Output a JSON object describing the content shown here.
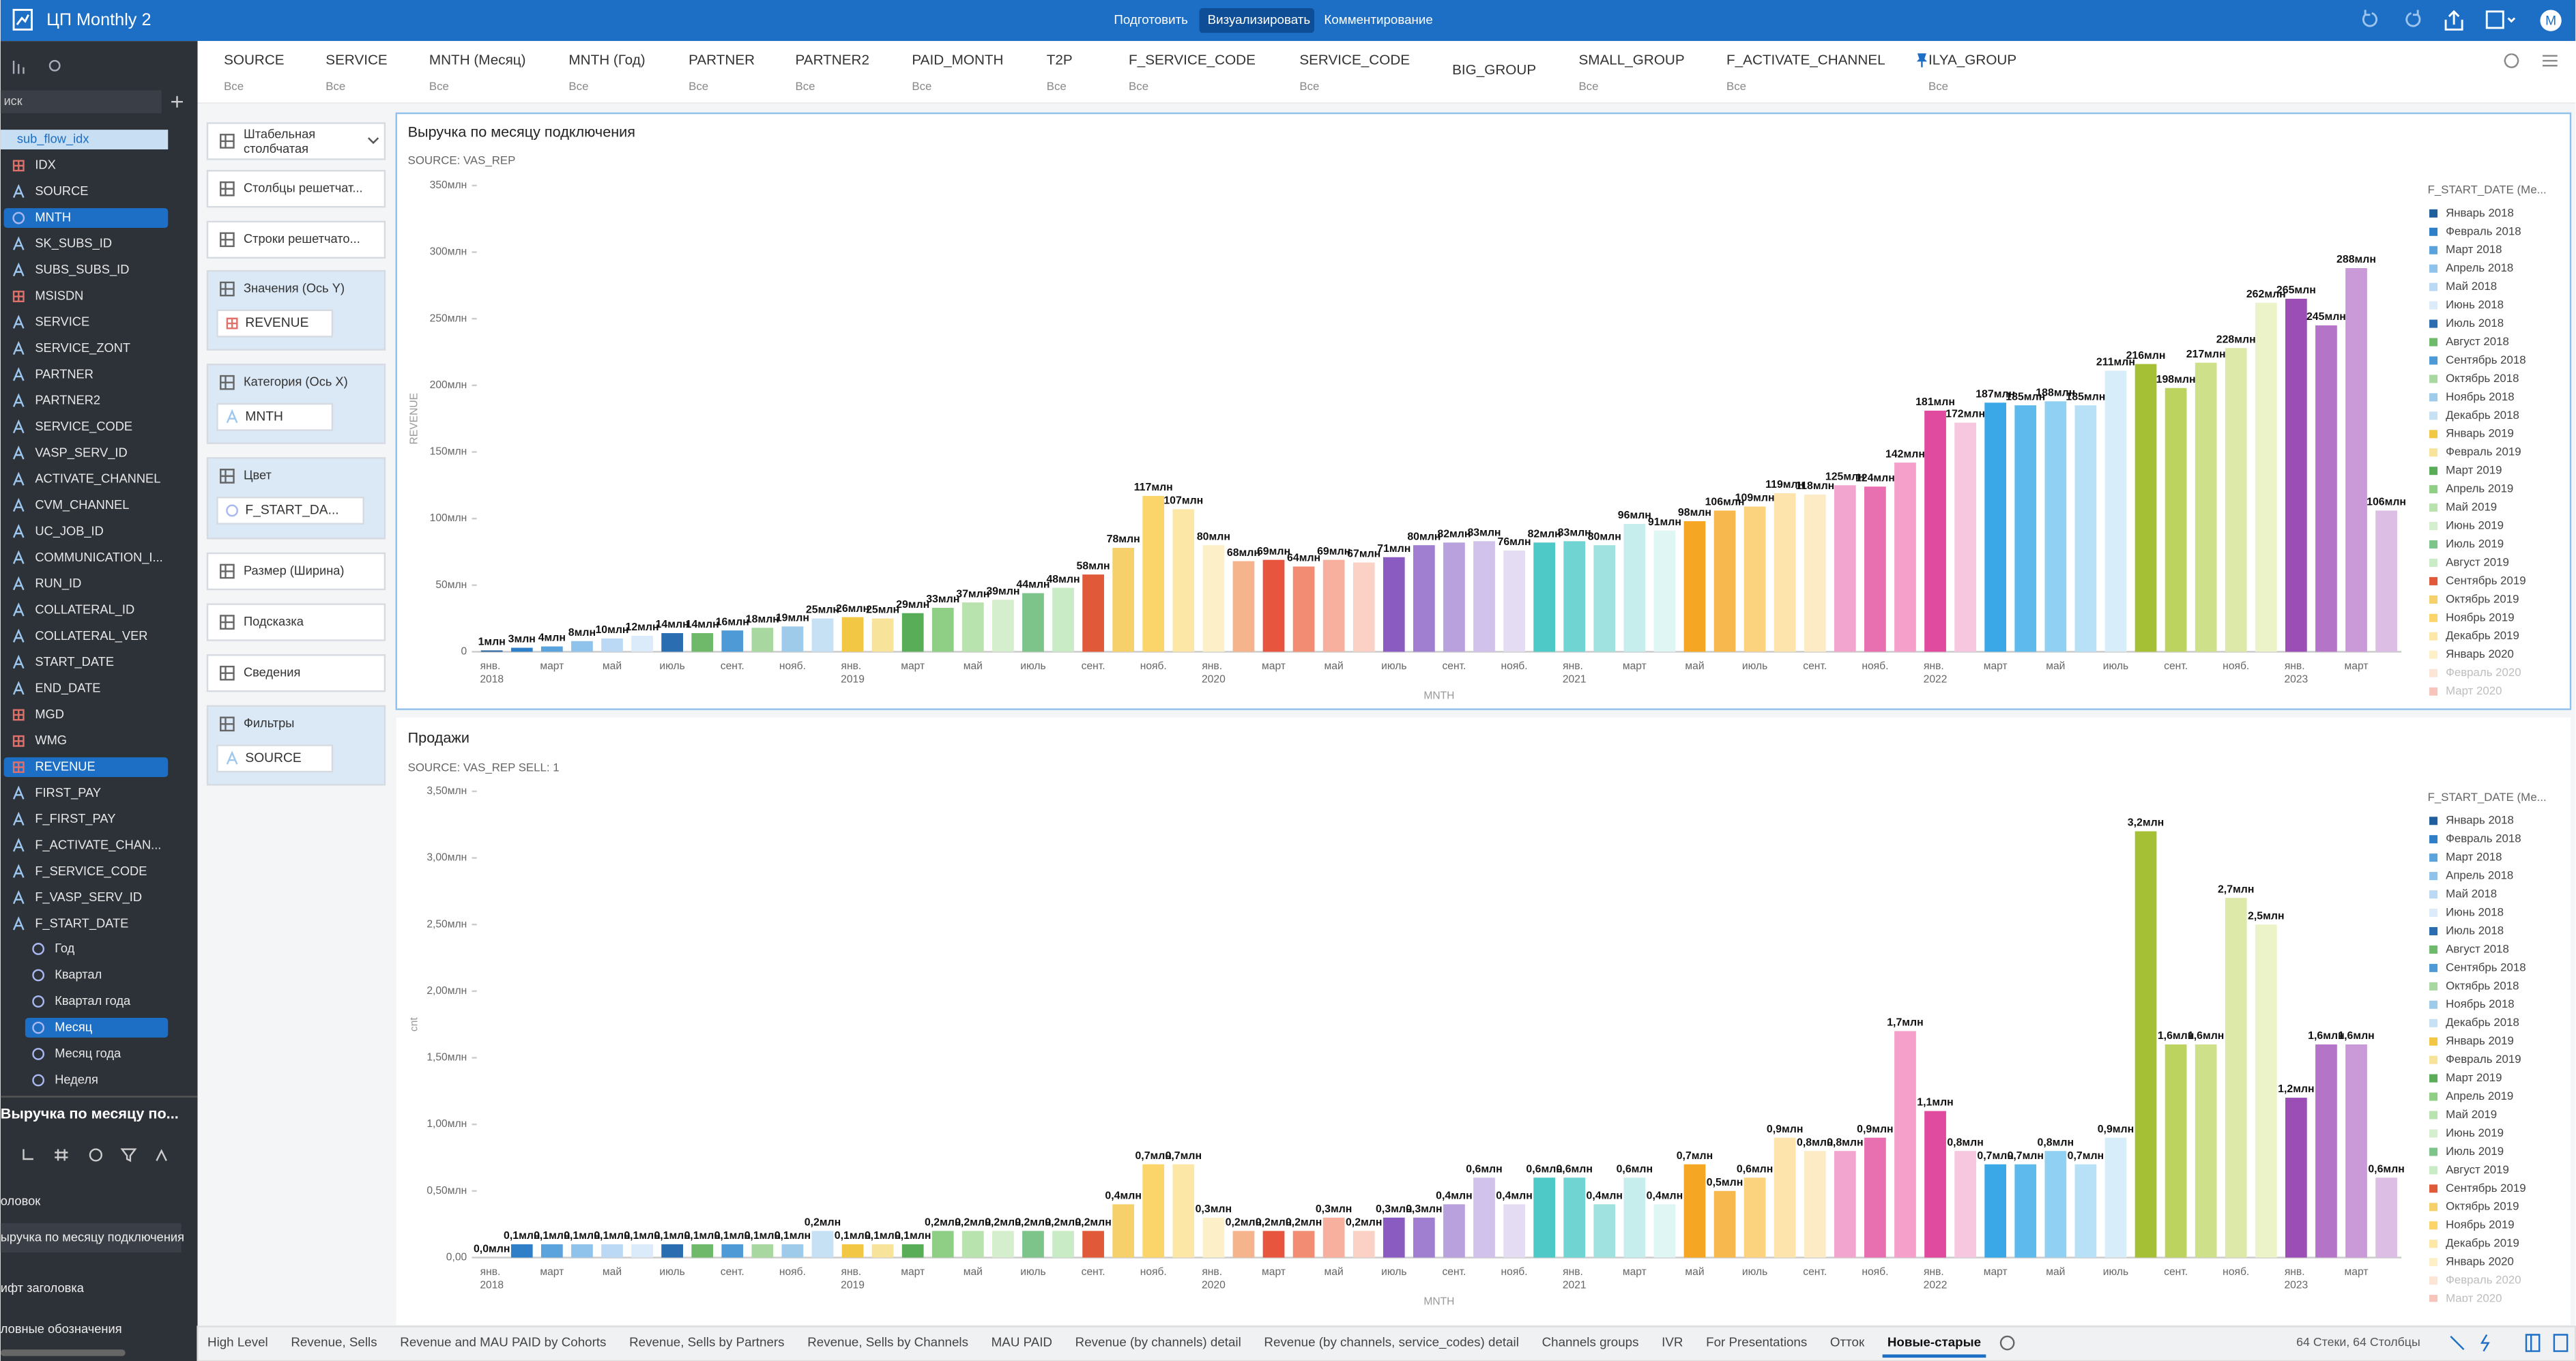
{
  "header": {
    "title": "ЦП Monthly 2",
    "modes": [
      "Подготовить",
      "Визуализировать",
      "Комментирование"
    ],
    "active_mode": 1,
    "avatar": "M"
  },
  "sidebar": {
    "search": "иск",
    "fields": [
      {
        "label": "sub_flow_idx",
        "kind": "source",
        "selected": "light"
      },
      {
        "label": "IDX",
        "kind": "num"
      },
      {
        "label": "SOURCE",
        "kind": "str"
      },
      {
        "label": "MNTH",
        "kind": "date",
        "selected": "blue"
      },
      {
        "label": "SK_SUBS_ID",
        "kind": "str"
      },
      {
        "label": "SUBS_SUBS_ID",
        "kind": "str"
      },
      {
        "label": "MSISDN",
        "kind": "num"
      },
      {
        "label": "SERVICE",
        "kind": "str"
      },
      {
        "label": "SERVICE_ZONT",
        "kind": "str"
      },
      {
        "label": "PARTNER",
        "kind": "str"
      },
      {
        "label": "PARTNER2",
        "kind": "str"
      },
      {
        "label": "SERVICE_CODE",
        "kind": "str"
      },
      {
        "label": "VASP_SERV_ID",
        "kind": "str"
      },
      {
        "label": "ACTIVATE_CHANNEL",
        "kind": "str"
      },
      {
        "label": "CVM_CHANNEL",
        "kind": "str"
      },
      {
        "label": "UC_JOB_ID",
        "kind": "str"
      },
      {
        "label": "COMMUNICATION_I...",
        "kind": "str"
      },
      {
        "label": "RUN_ID",
        "kind": "str"
      },
      {
        "label": "COLLATERAL_ID",
        "kind": "str"
      },
      {
        "label": "COLLATERAL_VER",
        "kind": "str"
      },
      {
        "label": "START_DATE",
        "kind": "str"
      },
      {
        "label": "END_DATE",
        "kind": "str"
      },
      {
        "label": "MGD",
        "kind": "num"
      },
      {
        "label": "WMG",
        "kind": "num"
      },
      {
        "label": "REVENUE",
        "kind": "num",
        "selected": "blue"
      },
      {
        "label": "FIRST_PAY",
        "kind": "str"
      },
      {
        "label": "F_FIRST_PAY",
        "kind": "str"
      },
      {
        "label": "F_ACTIVATE_CHAN...",
        "kind": "str"
      },
      {
        "label": "F_SERVICE_CODE",
        "kind": "str"
      },
      {
        "label": "F_VASP_SERV_ID",
        "kind": "str"
      },
      {
        "label": "F_START_DATE",
        "kind": "str"
      }
    ],
    "date_parts": [
      {
        "label": "Год"
      },
      {
        "label": "Квартал"
      },
      {
        "label": "Квартал года"
      },
      {
        "label": "Месяц",
        "selected": "blue"
      },
      {
        "label": "Месяц года"
      },
      {
        "label": "Неделя"
      }
    ],
    "panel_title": "Выручка по месяцу по...",
    "settings": [
      "оловок",
      "ыручка по месяцу подключения",
      "ифт заголовка",
      "ловные обозначения"
    ]
  },
  "filters": [
    {
      "name": "SOURCE",
      "value": "Все"
    },
    {
      "name": "SERVICE",
      "value": "Все"
    },
    {
      "name": "MNTH (Месяц)",
      "value": "Все"
    },
    {
      "name": "MNTH (Год)",
      "value": "Все"
    },
    {
      "name": "PARTNER",
      "value": "Все"
    },
    {
      "name": "PARTNER2",
      "value": "Все"
    },
    {
      "name": "PAID_MONTH",
      "value": "Все"
    },
    {
      "name": "T2P",
      "value": "Все"
    },
    {
      "name": "F_SERVICE_CODE",
      "value": "Все"
    },
    {
      "name": "SERVICE_CODE",
      "value": "Все"
    },
    {
      "name": "BIG_GROUP"
    },
    {
      "name": "SMALL_GROUP",
      "value": "Все"
    },
    {
      "name": "F_ACTIVATE_CHANNEL",
      "value": "Все"
    },
    {
      "name": "ILYA_GROUP",
      "value": "Все"
    }
  ],
  "shelves": [
    {
      "label": "Штабельная столбчатая"
    },
    {
      "label": "Столбцы решетчат..."
    },
    {
      "label": "Строки решетчато..."
    },
    {
      "label": "Значения (Ось Y)",
      "pill": "REVENUE"
    },
    {
      "label": "Категория (Ось X)",
      "pill": "MNTH"
    },
    {
      "label": "Цвет",
      "pill": "F_START_DA..."
    },
    {
      "label": "Размер (Ширина)"
    },
    {
      "label": "Подсказка"
    },
    {
      "label": "Сведения"
    },
    {
      "label": "Фильтры",
      "pill": "SOURCE"
    }
  ],
  "chart_data": [
    {
      "type": "bar",
      "title": "Выручка по месяцу подключения",
      "subtitle": "SOURCE: VAS_REP",
      "y_label": "REVENUE",
      "x_label": "MNTH",
      "categories": [
        "янв. 2018",
        null,
        "март",
        null,
        "май",
        null,
        "июль",
        null,
        "сент.",
        null,
        "нояб.",
        null,
        "янв. 2019",
        null,
        "март",
        null,
        "май",
        null,
        "июль",
        null,
        "сент.",
        null,
        "нояб.",
        null,
        "янв. 2020",
        null,
        "март",
        null,
        "май",
        null,
        "июль",
        null,
        "сент.",
        null,
        "нояб.",
        null,
        "янв. 2021",
        null,
        "март",
        null,
        "май",
        null,
        "июль",
        null,
        "сент.",
        null,
        "нояб.",
        null,
        "янв. 2022",
        null,
        "март",
        null,
        "май",
        null,
        "июль",
        null,
        "сент.",
        null,
        "нояб.",
        null,
        "янв. 2023",
        null,
        "март",
        null
      ],
      "values": [
        1,
        3,
        4,
        8,
        10,
        12,
        14,
        14,
        16,
        18,
        19,
        25,
        26,
        25,
        29,
        33,
        37,
        39,
        44,
        48,
        58,
        78,
        117,
        107,
        80,
        68,
        69,
        64,
        69,
        67,
        71,
        80,
        82,
        83,
        76,
        82,
        83,
        80,
        96,
        91,
        98,
        106,
        109,
        119,
        118,
        125,
        124,
        142,
        181,
        172,
        187,
        185,
        188,
        185,
        211,
        216,
        198,
        217,
        228,
        262,
        265,
        245,
        288,
        106
      ],
      "value_labels": [
        "1млн",
        "3млн",
        "4млн",
        "8млн",
        "10млн",
        "12млн",
        "14млн",
        "14млн",
        "16млн",
        "18млн",
        "19млн",
        "25млн",
        "26млн",
        "25млн",
        "29млн",
        "33млн",
        "37млн",
        "39млн",
        "44млн",
        "48млн",
        "58млн",
        "78млн",
        "117млн",
        "107млн",
        "80млн",
        "68млн",
        "69млн",
        "64млн",
        "69млн",
        "67млн",
        "71млн",
        "80млн",
        "82млн",
        "83млн",
        "76млн",
        "82млн",
        "83млн",
        "80млн",
        "96млн",
        "91млн",
        "98млн",
        "106млн",
        "109млн",
        "119млн",
        "118млн",
        "125млн",
        "124млн",
        "142млн",
        "181млн",
        "172млн",
        "187млн",
        "185млн",
        "188млн",
        "185млн",
        "211млн",
        "216млн",
        "198млн",
        "217млн",
        "228млн",
        "262млн",
        "265млн",
        "245млн",
        "288млн",
        "106млн"
      ],
      "colors": [
        "#1f5f9e",
        "#2f7fc8",
        "#5ba3dd",
        "#8fc3ec",
        "#bbd9f4",
        "#dcebf9",
        "#2a6db0",
        "#6fba6a",
        "#4e9ad6",
        "#a8d8a0",
        "#9fcbea",
        "#c6e0f4",
        "#f2c744",
        "#f7e39a",
        "#59ad59",
        "#8fcf85",
        "#b8e2ae",
        "#d5eecd",
        "#7cc48a",
        "#c9ebc6",
        "#e05a3a",
        "#f5d06b",
        "#fbd56a",
        "#fde7a6",
        "#fdf0c8",
        "#f6b48d",
        "#e8553f",
        "#f28d73",
        "#f7b09e",
        "#fbd0c5",
        "#8a5cc2",
        "#a07fd0",
        "#b8a1dd",
        "#d0c2ea",
        "#e4dcf3",
        "#4fc9c7",
        "#6fd4d2",
        "#9fe2e0",
        "#c6eeed",
        "#e0f6f5",
        "#f5a623",
        "#f7b94d",
        "#fbd27d",
        "#fde4ad",
        "#fdebc5",
        "#f2a6cf",
        "#e86fb0",
        "#f59fcb",
        "#e04b9f",
        "#f7c7e0",
        "#3aa8e6",
        "#5eb9ec",
        "#8fd0f3",
        "#b8e1f7",
        "#d7eefa",
        "#a6c035",
        "#bcd35f",
        "#cfe08a",
        "#dde9a8",
        "#ecf3c9",
        "#9b4fb6",
        "#b475c8",
        "#c99ad7",
        "#dcbde4"
      ],
      "ylim": [
        0,
        350
      ],
      "yticks": [
        0,
        {
          "value": 50,
          "label": "50млн"
        },
        {
          "value": 100,
          "label": "100млн"
        },
        {
          "value": 150,
          "label": "150млн"
        },
        {
          "value": 200,
          "label": "200млн"
        },
        {
          "value": 250,
          "label": "250млн"
        },
        {
          "value": 300,
          "label": "300млн"
        },
        {
          "value": 350,
          "label": "350млн"
        }
      ],
      "grid": false,
      "legend": {
        "title": "F_START_DATE (Ме...",
        "entries": [
          "Январь 2018",
          "Февраль 2018",
          "Март 2018",
          "Апрель 2018",
          "Май 2018",
          "Июнь 2018",
          "Июль 2018",
          "Август 2018",
          "Сентябрь 2018",
          "Октябрь 2018",
          "Ноябрь 2018",
          "Декабрь 2018",
          "Январь 2019",
          "Февраль 2019",
          "Март 2019",
          "Апрель 2019",
          "Май 2019",
          "Июнь 2019",
          "Июль 2019",
          "Август 2019",
          "Сентябрь 2019",
          "Октябрь 2019",
          "Ноябрь 2019",
          "Декабрь 2019",
          "Январь 2020",
          "Февраль 2020",
          "Март 2020"
        ]
      }
    },
    {
      "type": "bar",
      "title": "Продажи",
      "subtitle": "SOURCE: VAS_REP   SELL: 1",
      "y_label": "cnt",
      "x_label": "MNTH",
      "categories": [
        "янв. 2018",
        null,
        "март",
        null,
        "май",
        null,
        "июль",
        null,
        "сент.",
        null,
        "нояб.",
        null,
        "янв. 2019",
        null,
        "март",
        null,
        "май",
        null,
        "июль",
        null,
        "сент.",
        null,
        "нояб.",
        null,
        "янв. 2020",
        null,
        "март",
        null,
        "май",
        null,
        "июль",
        null,
        "сент.",
        null,
        "нояб.",
        null,
        "янв. 2021",
        null,
        "март",
        null,
        "май",
        null,
        "июль",
        null,
        "сент.",
        null,
        "нояб.",
        null,
        "янв. 2022",
        null,
        "март",
        null,
        "май",
        null,
        "июль",
        null,
        "сент.",
        null,
        "нояб.",
        null,
        "янв. 2023",
        null,
        "март",
        null
      ],
      "values": [
        0,
        0.1,
        0.1,
        0.1,
        0.1,
        0.1,
        0.1,
        0.1,
        0.1,
        0.1,
        0.1,
        0.2,
        0.1,
        0.1,
        0.1,
        0.2,
        0.2,
        0.2,
        0.2,
        0.2,
        0.2,
        0.4,
        0.7,
        0.7,
        0.3,
        0.2,
        0.2,
        0.2,
        0.3,
        0.2,
        0.3,
        0.3,
        0.4,
        0.6,
        0.4,
        0.6,
        0.6,
        0.4,
        0.6,
        0.4,
        0.7,
        0.5,
        0.6,
        0.9,
        0.8,
        0.8,
        0.9,
        1.7,
        1.1,
        0.8,
        0.7,
        0.7,
        0.8,
        0.7,
        0.9,
        3.2,
        1.6,
        1.6,
        2.7,
        2.5,
        1.2,
        1.6,
        1.6,
        0.6
      ],
      "value_labels": [
        "0,0млн",
        "0,1млн",
        "0,1млн",
        "0,1млн",
        "0,1млн",
        "0,1млн",
        "0,1млн",
        "0,1млн",
        "0,1млн",
        "0,1млн",
        "0,1млн",
        "0,2млн",
        "0,1млн",
        "0,1млн",
        "0,1млн",
        "0,2млн",
        "0,2млн",
        "0,2млн",
        "0,2млн",
        "0,2млн",
        "0,2млн",
        "0,4млн",
        "0,7млн",
        "0,7млн",
        "0,3млн",
        "0,2млн",
        "0,2млн",
        "0,2млн",
        "0,3млн",
        "0,2млн",
        "0,3млн",
        "0,3млн",
        "0,4млн",
        "0,6млн",
        "0,4млн",
        "0,6млн",
        "0,6млн",
        "0,4млн",
        "0,6млн",
        "0,4млн",
        "0,7млн",
        "0,5млн",
        "0,6млн",
        "0,9млн",
        "0,8млн",
        "0,8млн",
        "0,9млн",
        "1,7млн",
        "1,1млн",
        "0,8млн",
        "0,7млн",
        "0,7млн",
        "0,8млн",
        "0,7млн",
        "0,9млн",
        "3,2млн",
        "1,6млн",
        "1,6млн",
        "2,7млн",
        "2,5млн",
        "1,2млн",
        "1,6млн",
        "1,6млн",
        "0,6млн"
      ],
      "colors": [
        "#1f5f9e",
        "#2f7fc8",
        "#5ba3dd",
        "#8fc3ec",
        "#bbd9f4",
        "#dcebf9",
        "#2a6db0",
        "#6fba6a",
        "#4e9ad6",
        "#a8d8a0",
        "#9fcbea",
        "#c6e0f4",
        "#f2c744",
        "#f7e39a",
        "#59ad59",
        "#8fcf85",
        "#b8e2ae",
        "#d5eecd",
        "#7cc48a",
        "#c9ebc6",
        "#e05a3a",
        "#f5d06b",
        "#fbd56a",
        "#fde7a6",
        "#fdf0c8",
        "#f6b48d",
        "#e8553f",
        "#f28d73",
        "#f7b09e",
        "#fbd0c5",
        "#8a5cc2",
        "#a07fd0",
        "#b8a1dd",
        "#d0c2ea",
        "#e4dcf3",
        "#4fc9c7",
        "#6fd4d2",
        "#9fe2e0",
        "#c6eeed",
        "#e0f6f5",
        "#f5a623",
        "#f7b94d",
        "#fbd27d",
        "#fde4ad",
        "#fdebc5",
        "#f2a6cf",
        "#e86fb0",
        "#f59fcb",
        "#e04b9f",
        "#f7c7e0",
        "#3aa8e6",
        "#5eb9ec",
        "#8fd0f3",
        "#b8e1f7",
        "#d7eefa",
        "#a6c035",
        "#bcd35f",
        "#cfe08a",
        "#dde9a8",
        "#ecf3c9",
        "#9b4fb6",
        "#b475c8",
        "#c99ad7",
        "#dcbde4"
      ],
      "ylim": [
        0,
        3.5
      ],
      "yticks": [
        {
          "value": 0,
          "label": "0,00"
        },
        {
          "value": 0.5,
          "label": "0,50млн"
        },
        {
          "value": 1,
          "label": "1,00млн"
        },
        {
          "value": 1.5,
          "label": "1,50млн"
        },
        {
          "value": 2,
          "label": "2,00млн"
        },
        {
          "value": 2.5,
          "label": "2,50млн"
        },
        {
          "value": 3,
          "label": "3,00млн"
        },
        {
          "value": 3.5,
          "label": "3,50млн"
        }
      ],
      "grid": false,
      "legend": {
        "title": "F_START_DATE (Ме...",
        "entries": [
          "Январь 2018",
          "Февраль 2018",
          "Март 2018",
          "Апрель 2018",
          "Май 2018",
          "Июнь 2018",
          "Июль 2018",
          "Август 2018",
          "Сентябрь 2018",
          "Октябрь 2018",
          "Ноябрь 2018",
          "Декабрь 2018",
          "Январь 2019",
          "Февраль 2019",
          "Март 2019",
          "Апрель 2019",
          "Май 2019",
          "Июнь 2019",
          "Июль 2019",
          "Август 2019",
          "Сентябрь 2019",
          "Октябрь 2019",
          "Ноябрь 2019",
          "Декабрь 2019",
          "Январь 2020",
          "Февраль 2020",
          "Март 2020"
        ]
      }
    }
  ],
  "tabs": [
    "High Level",
    "Revenue, Sells",
    "Revenue and MAU PAID by Cohorts",
    "Revenue, Sells by Partners",
    "Revenue, Sells by Channels",
    "MAU PAID",
    "Revenue (by channels) detail",
    "Revenue (by channels, service_codes) detail",
    "Channels groups",
    "IVR",
    "For Presentations",
    "Отток",
    "Новые-старые"
  ],
  "active_tab": 12,
  "status": "64 Стеки, 64 Столбцы"
}
